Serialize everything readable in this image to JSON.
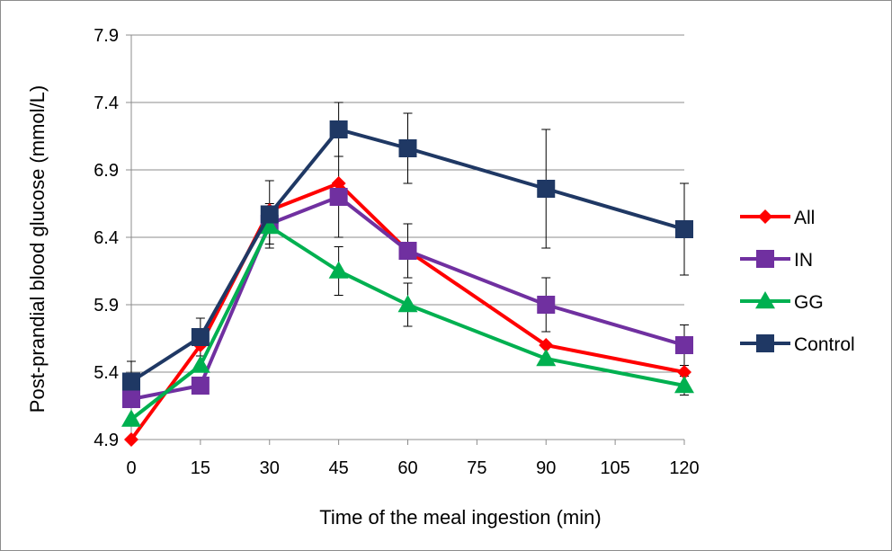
{
  "chart_data": {
    "type": "line",
    "title": "",
    "xlabel": "Time of the meal ingestion (min)",
    "ylabel": "Post-prandial blood glucose (mmol/L)",
    "xlim": [
      0,
      120
    ],
    "ylim": [
      4.9,
      7.9
    ],
    "x_ticks": [
      0,
      15,
      30,
      45,
      60,
      75,
      90,
      105,
      120
    ],
    "y_ticks": [
      4.9,
      5.4,
      5.9,
      6.4,
      6.9,
      7.4,
      7.9
    ],
    "x_tick_labels": [
      "0",
      "15",
      "30",
      "45",
      "60",
      "75",
      "90",
      "105",
      "120"
    ],
    "y_tick_labels": [
      "4.9",
      "5.4",
      "5.9",
      "6.4",
      "6.9",
      "7.4",
      "7.9"
    ],
    "grid": "horizontal",
    "legend_position": "right",
    "x": [
      0,
      15,
      30,
      45,
      60,
      90,
      120
    ],
    "series": [
      {
        "name": "All",
        "marker": "diamond",
        "color": "#ff0000",
        "values": [
          4.9,
          5.6,
          6.6,
          6.8,
          6.3,
          5.6,
          5.4
        ],
        "error": [
          0,
          0,
          0,
          0,
          0,
          0,
          0
        ]
      },
      {
        "name": "IN",
        "marker": "square",
        "color": "#7030a0",
        "values": [
          5.2,
          5.3,
          6.5,
          6.7,
          6.3,
          5.9,
          5.6
        ],
        "error": [
          0,
          0.05,
          0.15,
          0.3,
          0.2,
          0.2,
          0.15
        ]
      },
      {
        "name": "GG",
        "marker": "triangle",
        "color": "#00b050",
        "values": [
          5.05,
          5.45,
          6.48,
          6.15,
          5.9,
          5.5,
          5.3
        ],
        "error": [
          0,
          0,
          0,
          0.18,
          0.16,
          0,
          0.07
        ]
      },
      {
        "name": "Control",
        "marker": "square",
        "color": "#1f3864",
        "values": [
          5.33,
          5.66,
          6.57,
          7.2,
          7.06,
          6.76,
          6.46
        ],
        "error": [
          0.15,
          0.14,
          0.25,
          0.2,
          0.26,
          0.44,
          0.34
        ]
      }
    ]
  }
}
